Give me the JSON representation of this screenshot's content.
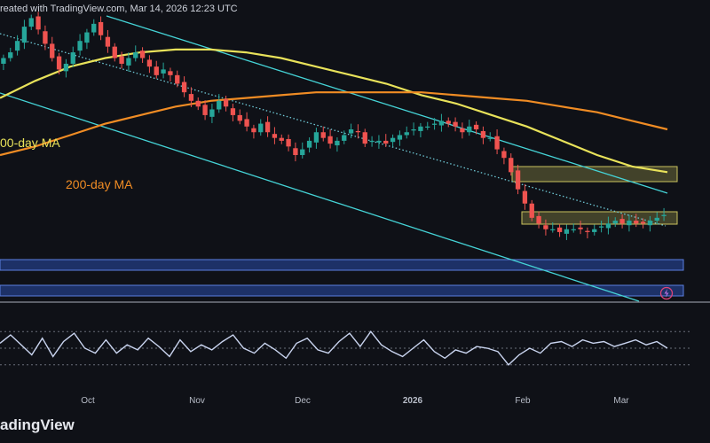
{
  "header": {
    "text": "reated with TradingView.com, Mar 14, 2026 12:23 UTC"
  },
  "footer": {
    "brand": "adingView"
  },
  "colors": {
    "background": "#0f1117",
    "up": "#26a69a",
    "down": "#ef5350",
    "ma100": "#e8e25a",
    "ma200": "#f08c24",
    "channel": "#45d3d6",
    "trendline": "#6fc9d6",
    "resistance_zone": "#c9c25e",
    "support_zone": "#2f58c9",
    "rsi": "#c9d4ef"
  },
  "chart_data": [
    {
      "type": "candlestick",
      "x_axis": {
        "tick_labels": [
          "Oct",
          "Nov",
          "Dec",
          "2026",
          "Feb",
          "Mar"
        ]
      },
      "annotations": [
        {
          "text": "00-day MA",
          "color": "#e8e25a"
        },
        {
          "text": "200-day MA",
          "color": "#f08c24"
        }
      ],
      "series": [
        {
          "name": "price",
          "values_in_chart_units": [
            84,
            86,
            90,
            95,
            98,
            94,
            89,
            84,
            80,
            82,
            86,
            90,
            93,
            96,
            92,
            88,
            84,
            82,
            84,
            86,
            84,
            81,
            78,
            80,
            78,
            75,
            72,
            69,
            67,
            64,
            66,
            69,
            67,
            64,
            62,
            60,
            58,
            61,
            58,
            56,
            55,
            53,
            50,
            52,
            55,
            58,
            56,
            54,
            55,
            57,
            59,
            58,
            54,
            55,
            55,
            54,
            56,
            57,
            58,
            59,
            60,
            60,
            61,
            62,
            61,
            60,
            58,
            60,
            59,
            56,
            56,
            52,
            49,
            44,
            38,
            33,
            28,
            26,
            24,
            24,
            23,
            24,
            24,
            24,
            23,
            24,
            25,
            26,
            27,
            26,
            27,
            26,
            26,
            27,
            28,
            29
          ]
        },
        {
          "name": "100-day MA",
          "values_in_chart_units": [
            70,
            76,
            81,
            84,
            86,
            87,
            87,
            86,
            84,
            81,
            78,
            75,
            71,
            68,
            64,
            60,
            55,
            50,
            46,
            44
          ]
        },
        {
          "name": "200-day MA",
          "values_in_chart_units": [
            50,
            53,
            57,
            61,
            64,
            67,
            69,
            70,
            71,
            72,
            72,
            72,
            72,
            71,
            70,
            69,
            67,
            65,
            62,
            59
          ]
        },
        {
          "name": "RSI",
          "values_in_chart_units": [
            56,
            66,
            54,
            42,
            62,
            40,
            58,
            68,
            50,
            44,
            60,
            44,
            54,
            48,
            62,
            52,
            40,
            60,
            46,
            54,
            48,
            58,
            66,
            50,
            44,
            56,
            48,
            38,
            56,
            62,
            48,
            44,
            58,
            68,
            52,
            70,
            54,
            46,
            40,
            50,
            60,
            46,
            38,
            48,
            44,
            52,
            50,
            46,
            30,
            42,
            50,
            44,
            56,
            58,
            52,
            60,
            56,
            58,
            52,
            56,
            60,
            54,
            58,
            50
          ]
        }
      ],
      "zones": [
        {
          "name": "resistance zone 1",
          "kind": "resistance"
        },
        {
          "name": "resistance zone 2",
          "kind": "resistance"
        },
        {
          "name": "support zone 1",
          "kind": "support"
        },
        {
          "name": "support zone 2",
          "kind": "support"
        }
      ],
      "trendlines": [
        {
          "name": "channel upper",
          "style": "solid"
        },
        {
          "name": "channel lower",
          "style": "solid"
        },
        {
          "name": "dotted trendline",
          "style": "dotted"
        }
      ]
    }
  ]
}
